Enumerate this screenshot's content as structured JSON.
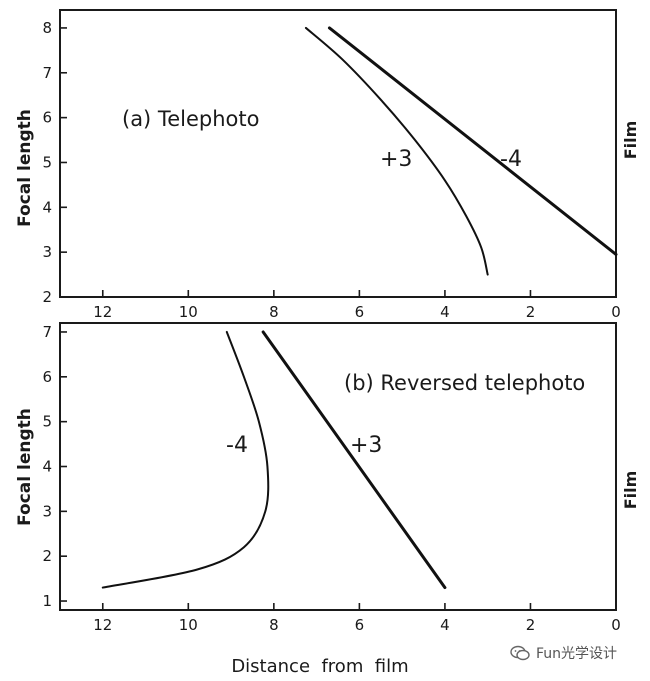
{
  "chart_data": [
    {
      "type": "line",
      "title": "(a) Telephoto",
      "ylabel": "Focal length",
      "xlabel": "",
      "side_label": "Film",
      "xlim": [
        13,
        0
      ],
      "ylim": [
        2,
        8.4
      ],
      "xticks": [
        12,
        10,
        8,
        6,
        4,
        2,
        0
      ],
      "yticks": [
        2,
        3,
        4,
        5,
        6,
        7,
        8
      ],
      "series": [
        {
          "name": "+3",
          "points": [
            [
              7.25,
              8.0
            ],
            [
              6.4,
              7.3
            ],
            [
              5.5,
              6.4
            ],
            [
              4.7,
              5.5
            ],
            [
              4.0,
              4.6
            ],
            [
              3.5,
              3.8
            ],
            [
              3.15,
              3.1
            ],
            [
              3.0,
              2.5
            ]
          ],
          "style": "thin"
        },
        {
          "name": "-4",
          "points": [
            [
              6.7,
              8.0
            ],
            [
              0.0,
              2.95
            ]
          ],
          "style": "thick"
        }
      ]
    },
    {
      "type": "line",
      "title": "(b) Reversed  telephoto",
      "ylabel": "Focal length",
      "xlabel": "Distance  from  film",
      "side_label": "Film",
      "xlim": [
        13,
        0
      ],
      "ylim": [
        0.8,
        7.2
      ],
      "xticks": [
        12,
        10,
        8,
        6,
        4,
        2,
        0
      ],
      "yticks": [
        1,
        2,
        3,
        4,
        5,
        6,
        7
      ],
      "series": [
        {
          "name": "-4",
          "points": [
            [
              9.1,
              7.0
            ],
            [
              8.7,
              6.0
            ],
            [
              8.35,
              5.0
            ],
            [
              8.15,
              4.0
            ],
            [
              8.2,
              3.0
            ],
            [
              8.7,
              2.2
            ],
            [
              9.8,
              1.7
            ],
            [
              12.0,
              1.3
            ]
          ],
          "style": "thin"
        },
        {
          "name": "+3",
          "points": [
            [
              8.25,
              7.0
            ],
            [
              4.0,
              1.3
            ]
          ],
          "style": "thick"
        }
      ]
    }
  ],
  "watermark": {
    "text": "Fun光学设计"
  }
}
